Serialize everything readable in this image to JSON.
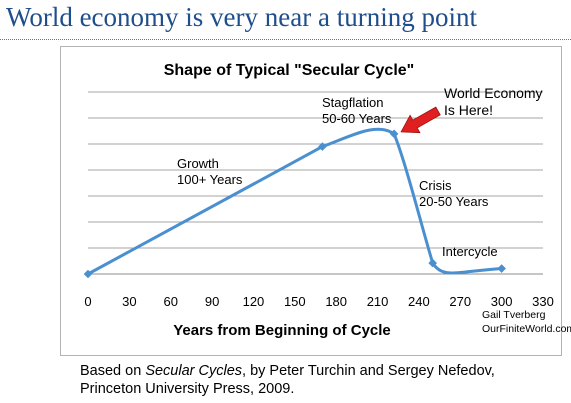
{
  "slide": {
    "title": "World economy is very near a turning point",
    "caption": {
      "prefix": "Based on ",
      "book": "Secular Cycles",
      "suffix": ", by Peter Turchin and Sergey Nefedov, Princeton University Press, 2009."
    }
  },
  "chart_data": {
    "type": "line",
    "title": "Shape of Typical \"Secular Cycle\"",
    "xlabel": "Years from Beginning of Cycle",
    "ylabel": "",
    "xlim": [
      0,
      330
    ],
    "xticks": [
      0,
      30,
      60,
      90,
      120,
      150,
      180,
      210,
      240,
      270,
      300,
      330
    ],
    "ylim": [
      0,
      100
    ],
    "grid": "horizontal",
    "series": [
      {
        "color": "#4a8fd0",
        "markers": [
          {
            "x": 0,
            "y": 0
          },
          {
            "x": 170,
            "y": 70
          },
          {
            "x": 222,
            "y": 77
          },
          {
            "x": 250,
            "y": 6
          },
          {
            "x": 300,
            "y": 3
          }
        ]
      }
    ],
    "annotations": [
      {
        "id": "growth",
        "lines": [
          "Growth",
          "100+ Years"
        ]
      },
      {
        "id": "stagflation",
        "lines": [
          "Stagflation",
          "50-60 Years"
        ]
      },
      {
        "id": "world",
        "lines": [
          "World Economy",
          "Is Here!"
        ]
      },
      {
        "id": "crisis",
        "lines": [
          "Crisis",
          "20-50 Years"
        ]
      },
      {
        "id": "intercycle",
        "lines": [
          "Intercycle"
        ]
      }
    ],
    "credit": [
      "Gail Tverberg",
      "OurFiniteWorld.com"
    ],
    "arrow_color": "#e02020"
  }
}
